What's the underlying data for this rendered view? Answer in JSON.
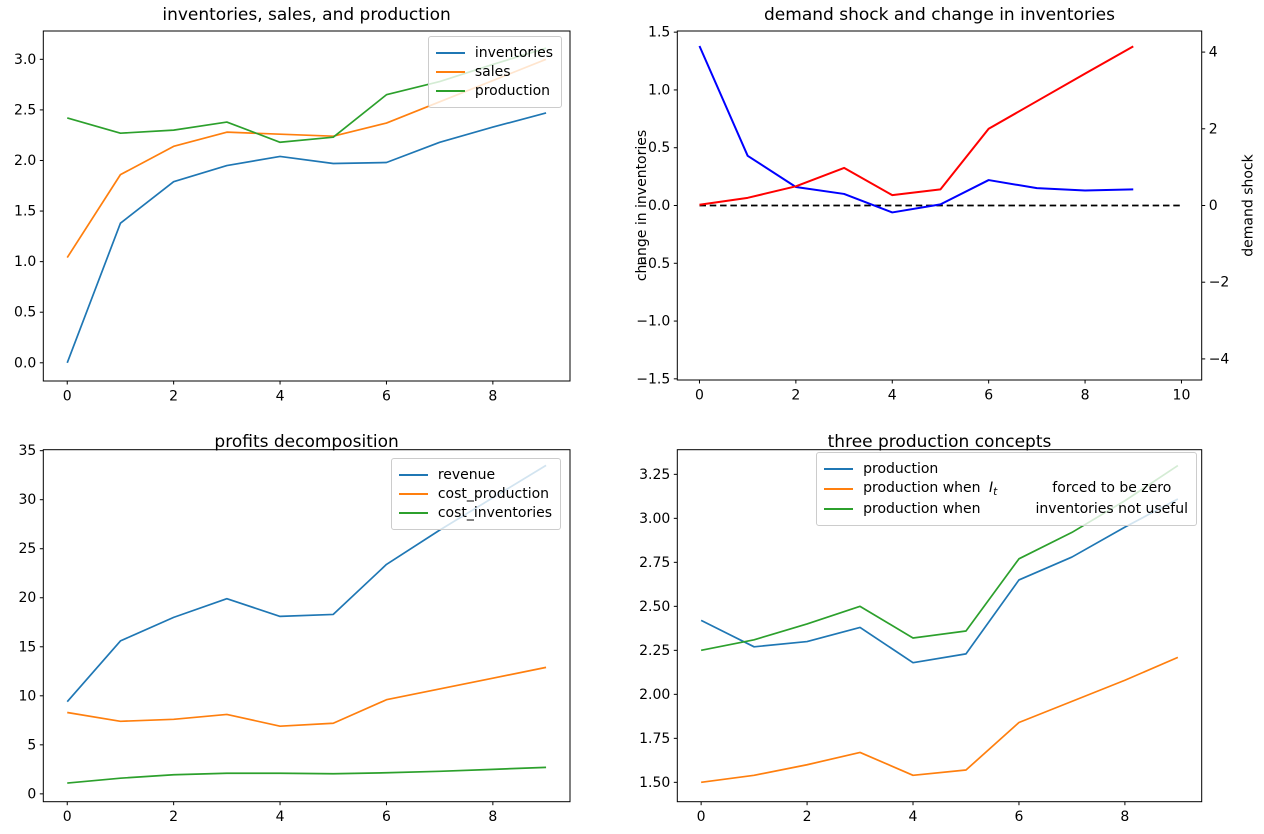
{
  "figure": {
    "background": "#ffffff"
  },
  "chart_data": [
    {
      "type": "line",
      "title": "inventories, sales, and production",
      "x": [
        0,
        1,
        2,
        3,
        4,
        5,
        6,
        7,
        8,
        9
      ],
      "xlim": [
        -0.45,
        9.45
      ],
      "ylim": [
        -0.18,
        3.28
      ],
      "xticks": {
        "values": [
          0,
          2,
          4,
          6,
          8
        ],
        "labels": [
          "0",
          "2",
          "4",
          "6",
          "8"
        ]
      },
      "yticks": {
        "values": [
          0,
          0.5,
          1,
          1.5,
          2,
          2.5,
          3
        ],
        "labels": [
          "0.0",
          "0.5",
          "1.0",
          "1.5",
          "2.0",
          "2.5",
          "3.0"
        ]
      },
      "grid": false,
      "legend_position": "upper right",
      "series": [
        {
          "name": "inventories",
          "color": "#1f77b4",
          "lw": 1.7,
          "values": [
            0.0,
            1.38,
            1.79,
            1.95,
            2.04,
            1.97,
            1.98,
            2.18,
            2.33,
            2.47
          ]
        },
        {
          "name": "sales",
          "color": "#ff7f0e",
          "lw": 1.7,
          "values": [
            1.04,
            1.86,
            2.14,
            2.28,
            2.26,
            2.24,
            2.37,
            2.58,
            2.79,
            3.0
          ]
        },
        {
          "name": "production",
          "color": "#2ca02c",
          "lw": 1.7,
          "values": [
            2.42,
            2.27,
            2.3,
            2.38,
            2.18,
            2.23,
            2.65,
            2.78,
            2.95,
            3.11
          ]
        }
      ],
      "legend": {
        "items": [
          {
            "color": "#1f77b4",
            "parts": [
              {
                "text": "inventories"
              }
            ]
          },
          {
            "color": "#ff7f0e",
            "parts": [
              {
                "text": "sales"
              }
            ]
          },
          {
            "color": "#2ca02c",
            "parts": [
              {
                "text": "production"
              }
            ]
          }
        ]
      }
    },
    {
      "type": "line",
      "title": "demand shock and change in inventories",
      "x": [
        0,
        1,
        2,
        3,
        4,
        5,
        6,
        7,
        8,
        9
      ],
      "xlim": [
        -0.46,
        10.42
      ],
      "ylim": [
        -1.51,
        1.51
      ],
      "ylim_right": [
        -4.55,
        4.55
      ],
      "xticks": {
        "values": [
          0,
          2,
          4,
          6,
          8,
          10
        ],
        "labels": [
          "0",
          "2",
          "4",
          "6",
          "8",
          "10"
        ]
      },
      "yticks": {
        "values": [
          -1.5,
          -1.0,
          -0.5,
          0,
          0.5,
          1.0,
          1.5
        ],
        "labels": [
          "−1.5",
          "−1.0",
          "−0.5",
          "0.0",
          "0.5",
          "1.0",
          "1.5"
        ]
      },
      "yticks_right": {
        "values": [
          -4,
          -2,
          0,
          2,
          4
        ],
        "labels": [
          "−4",
          "−2",
          "0",
          "2",
          "4"
        ]
      },
      "ylabel_left": {
        "text": "change in inventories",
        "color": "#0000ff"
      },
      "ylabel_right": {
        "text": "demand shock",
        "color": "#ff0000"
      },
      "grid": false,
      "series": [
        {
          "name": "zero line",
          "color": "#000000",
          "lw": 1.8,
          "dash": true,
          "x": [
            0,
            10
          ],
          "values": [
            0,
            0
          ]
        },
        {
          "name": "change in inventories",
          "color": "#0000ff",
          "lw": 2,
          "values": [
            1.38,
            0.43,
            0.16,
            0.1,
            -0.06,
            0.01,
            0.22,
            0.15,
            0.13,
            0.14
          ]
        },
        {
          "name": "demand shock",
          "color": "#ff0000",
          "lw": 2,
          "axis": "right",
          "values": [
            0.02,
            0.2,
            0.5,
            0.98,
            0.27,
            0.42,
            2.0,
            2.72,
            3.44,
            4.15
          ]
        }
      ]
    },
    {
      "type": "line",
      "title": "profits decomposition",
      "x": [
        0,
        1,
        2,
        3,
        4,
        5,
        6,
        7,
        8,
        9
      ],
      "xlim": [
        -0.45,
        9.45
      ],
      "ylim": [
        -0.8,
        35.1
      ],
      "xticks": {
        "values": [
          0,
          2,
          4,
          6,
          8
        ],
        "labels": [
          "0",
          "2",
          "4",
          "6",
          "8"
        ]
      },
      "yticks": {
        "values": [
          0,
          5,
          10,
          15,
          20,
          25,
          30,
          35
        ],
        "labels": [
          "0",
          "5",
          "10",
          "15",
          "20",
          "25",
          "30",
          "35"
        ]
      },
      "grid": false,
      "legend_position": "upper right",
      "series": [
        {
          "name": "revenue",
          "color": "#1f77b4",
          "lw": 1.7,
          "values": [
            9.4,
            15.6,
            18.0,
            19.9,
            18.1,
            18.3,
            23.4,
            26.9,
            30.2,
            33.5
          ]
        },
        {
          "name": "cost_production",
          "color": "#ff7f0e",
          "lw": 1.7,
          "values": [
            8.3,
            7.4,
            7.6,
            8.1,
            6.9,
            7.2,
            9.6,
            10.7,
            11.8,
            12.9
          ]
        },
        {
          "name": "cost_inventories",
          "color": "#2ca02c",
          "lw": 1.7,
          "values": [
            1.1,
            1.6,
            1.95,
            2.1,
            2.1,
            2.05,
            2.15,
            2.3,
            2.5,
            2.7
          ]
        }
      ],
      "legend": {
        "items": [
          {
            "color": "#1f77b4",
            "parts": [
              {
                "text": "revenue"
              }
            ]
          },
          {
            "color": "#ff7f0e",
            "parts": [
              {
                "text": "cost_production"
              }
            ]
          },
          {
            "color": "#2ca02c",
            "parts": [
              {
                "text": "cost_inventories"
              }
            ]
          }
        ]
      }
    },
    {
      "type": "line",
      "title": "three production concepts",
      "x": [
        0,
        1,
        2,
        3,
        4,
        5,
        6,
        7,
        8,
        9
      ],
      "xlim": [
        -0.45,
        9.45
      ],
      "ylim": [
        1.39,
        3.39
      ],
      "xticks": {
        "values": [
          0,
          2,
          4,
          6,
          8
        ],
        "labels": [
          "0",
          "2",
          "4",
          "6",
          "8"
        ]
      },
      "yticks": {
        "values": [
          1.5,
          1.75,
          2.0,
          2.25,
          2.5,
          2.75,
          3.0,
          3.25
        ],
        "labels": [
          "1.50",
          "1.75",
          "2.00",
          "2.25",
          "2.50",
          "2.75",
          "3.00",
          "3.25"
        ]
      },
      "grid": false,
      "legend_position": "upper left",
      "series": [
        {
          "name": "production",
          "color": "#1f77b4",
          "lw": 1.7,
          "values": [
            2.42,
            2.27,
            2.3,
            2.38,
            2.18,
            2.23,
            2.65,
            2.78,
            2.95,
            3.11
          ]
        },
        {
          "name": "production when I_t forced to be zero",
          "color": "#ff7f0e",
          "lw": 1.7,
          "values": [
            1.5,
            1.54,
            1.6,
            1.67,
            1.54,
            1.57,
            1.84,
            1.96,
            2.08,
            2.21
          ]
        },
        {
          "name": "production when inventories not useful",
          "color": "#2ca02c",
          "lw": 1.7,
          "values": [
            2.25,
            2.31,
            2.4,
            2.5,
            2.32,
            2.36,
            2.77,
            2.92,
            3.1,
            3.3
          ]
        }
      ],
      "legend": {
        "items": [
          {
            "color": "#1f77b4",
            "parts": [
              {
                "text": "production"
              }
            ]
          },
          {
            "color": "#ff7f0e",
            "parts": [
              {
                "text": "production when "
              },
              {
                "text": "I",
                "style": "italic"
              },
              {
                "text": "t",
                "style": "sub"
              },
              {
                "text": "forced to be zero",
                "style": "gap"
              }
            ]
          },
          {
            "color": "#2ca02c",
            "parts": [
              {
                "text": "production when"
              },
              {
                "text": "inventories not useful",
                "style": "gap"
              }
            ]
          }
        ]
      }
    }
  ]
}
